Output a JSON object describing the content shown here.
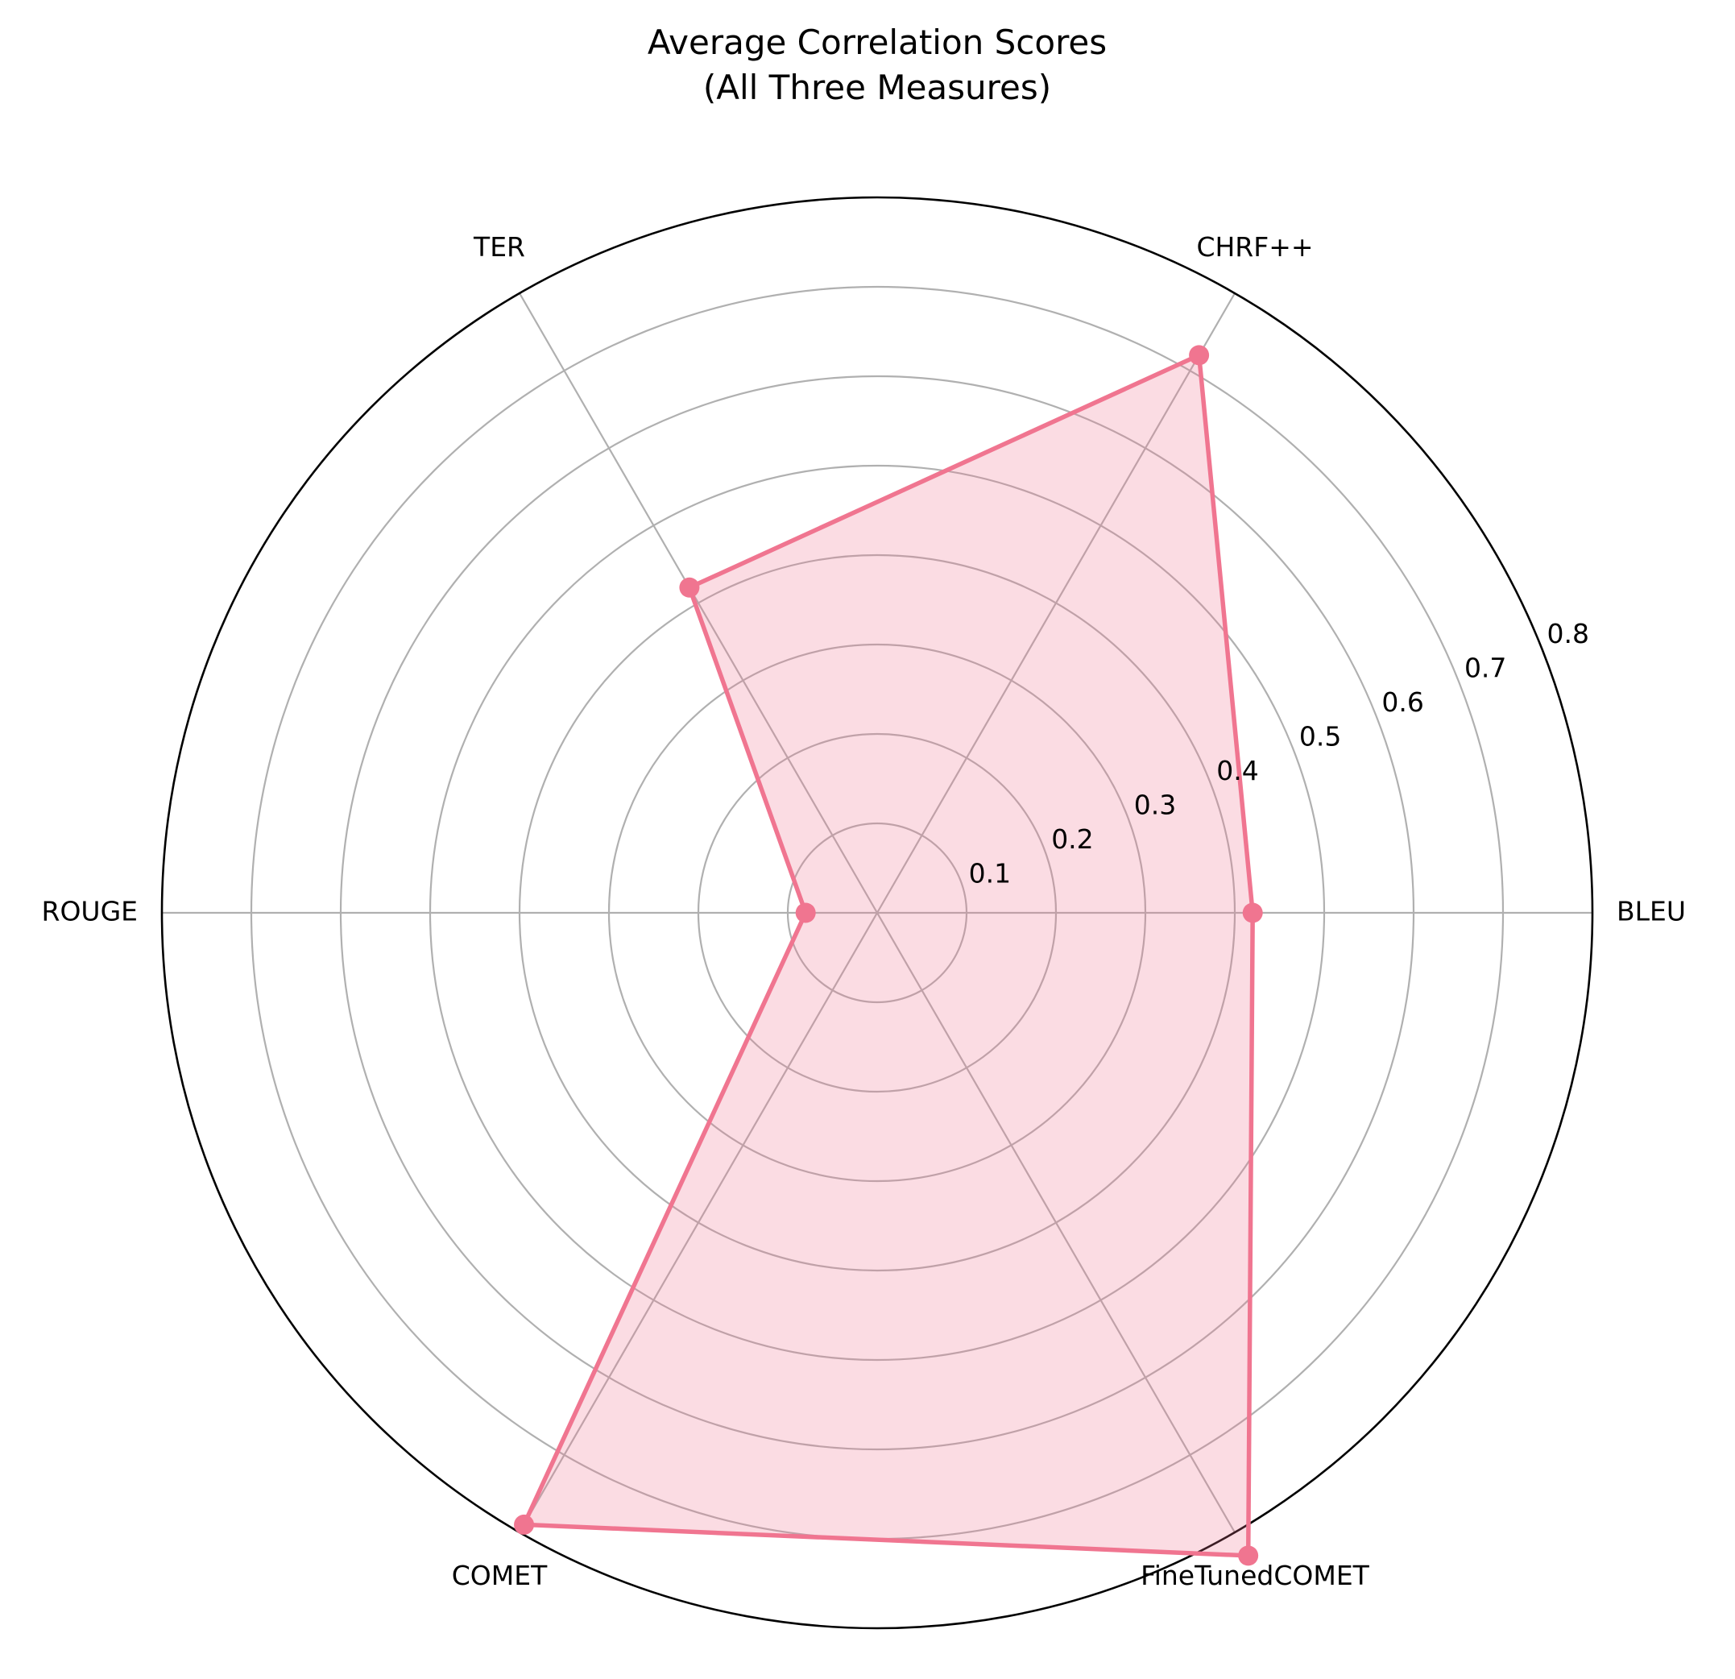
{
  "chart_data": {
    "type": "radar",
    "title": "Average Correlation Scores",
    "subtitle": "(All Three Measures)",
    "categories": [
      "BLEU",
      "CHRF++",
      "TER",
      "ROUGE",
      "COMET",
      "FineTunedCOMET"
    ],
    "series": [
      {
        "values": [
          0.42,
          0.72,
          0.42,
          0.08,
          0.79,
          0.83
        ]
      }
    ],
    "rlim": [
      0,
      0.8
    ],
    "r_ticks": [
      0.1,
      0.2,
      0.3,
      0.4,
      0.5,
      0.6,
      0.7,
      0.8
    ],
    "r_tick_labels": [
      "0.1",
      "0.2",
      "0.3",
      "0.4",
      "0.5",
      "0.6",
      "0.7",
      "0.8"
    ],
    "grid": true,
    "colors": {
      "line": "#f07590",
      "fill": "#f07590",
      "grid": "#b0b0b0"
    }
  }
}
